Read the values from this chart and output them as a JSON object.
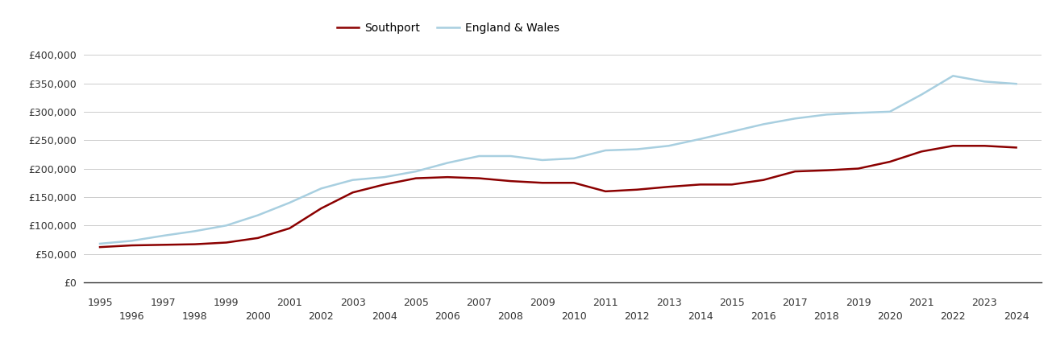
{
  "years": [
    1995,
    1996,
    1997,
    1998,
    1999,
    2000,
    2001,
    2002,
    2003,
    2004,
    2005,
    2006,
    2007,
    2008,
    2009,
    2010,
    2011,
    2012,
    2013,
    2014,
    2015,
    2016,
    2017,
    2018,
    2019,
    2020,
    2021,
    2022,
    2023,
    2024
  ],
  "southport": [
    62000,
    65000,
    66000,
    67000,
    70000,
    78000,
    95000,
    130000,
    158000,
    172000,
    183000,
    185000,
    183000,
    178000,
    175000,
    175000,
    160000,
    163000,
    168000,
    172000,
    172000,
    180000,
    195000,
    197000,
    200000,
    212000,
    230000,
    240000,
    240000,
    237000
  ],
  "england_wales": [
    68000,
    73000,
    82000,
    90000,
    100000,
    118000,
    140000,
    165000,
    180000,
    185000,
    195000,
    210000,
    222000,
    222000,
    215000,
    218000,
    232000,
    234000,
    240000,
    252000,
    265000,
    278000,
    288000,
    295000,
    298000,
    300000,
    330000,
    363000,
    353000,
    349000
  ],
  "southport_color": "#8b0000",
  "england_wales_color": "#a8cfe0",
  "background_color": "#ffffff",
  "grid_color": "#cccccc",
  "ylim": [
    0,
    420000
  ],
  "yticks": [
    0,
    50000,
    100000,
    150000,
    200000,
    250000,
    300000,
    350000,
    400000
  ],
  "legend_southport": "Southport",
  "legend_ew": "England & Wales",
  "line_width": 1.8,
  "tick_fontsize": 9,
  "legend_fontsize": 10,
  "xlim_left": 1994.5,
  "xlim_right": 2024.8
}
